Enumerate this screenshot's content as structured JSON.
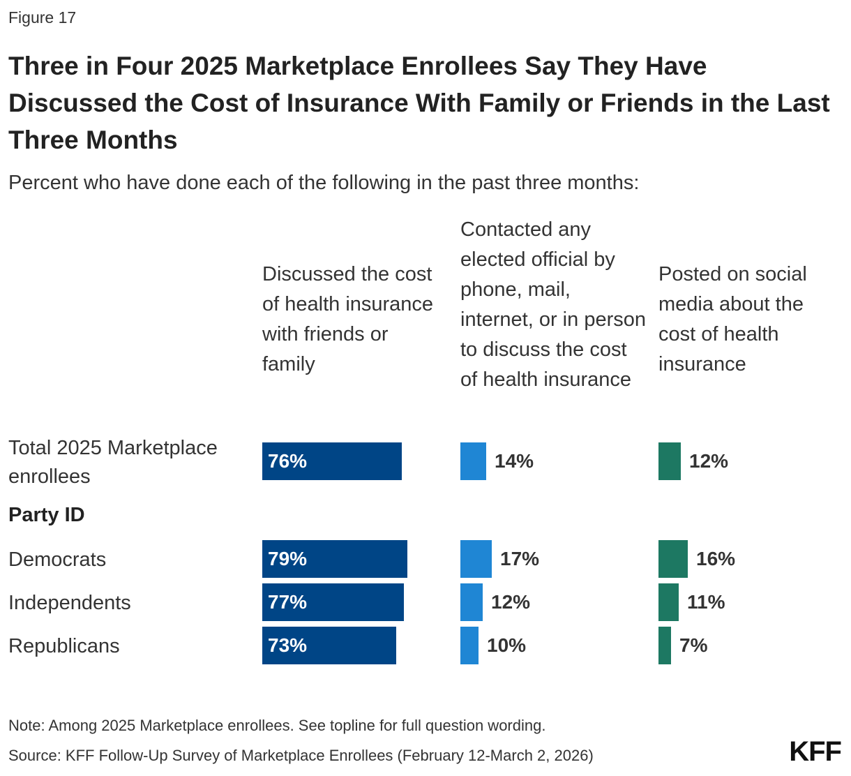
{
  "figure_label": "Figure 17",
  "chart_data": {
    "type": "bar",
    "title": "Three in Four 2025 Marketplace Enrollees Say They Have Discussed the Cost of Insurance With Family or Friends in the Last Three Months",
    "subtitle": "Percent who have done each of the following in the past three months:",
    "columns": [
      {
        "name": "Discussed the cost of health insurance with friends or family",
        "color": "#004586"
      },
      {
        "name": "Contacted any elected official by phone, mail, internet, or in person to discuss the cost of health insurance",
        "color": "#1f86d4"
      },
      {
        "name": "Posted on social media about the cost of health insurance",
        "color": "#1d7862"
      }
    ],
    "group_label": "Party ID",
    "categories": [
      "Total 2025 Marketplace enrollees",
      "Democrats",
      "Independents",
      "Republicans"
    ],
    "series": [
      {
        "name": "Discussed the cost of health insurance with friends or family",
        "values": [
          76,
          79,
          77,
          73
        ]
      },
      {
        "name": "Contacted any elected official by phone, mail, internet, or in person to discuss the cost of health insurance",
        "values": [
          14,
          17,
          12,
          10
        ]
      },
      {
        "name": "Posted on social media about the cost of health insurance",
        "values": [
          12,
          16,
          11,
          7
        ]
      }
    ],
    "unit": "%"
  },
  "footer": {
    "note": "Note: Among 2025 Marketplace enrollees. See topline for full question wording.",
    "source": "Source: KFF Follow-Up Survey of Marketplace Enrollees (February 12-March 2, 2026)",
    "logo": "KFF"
  }
}
